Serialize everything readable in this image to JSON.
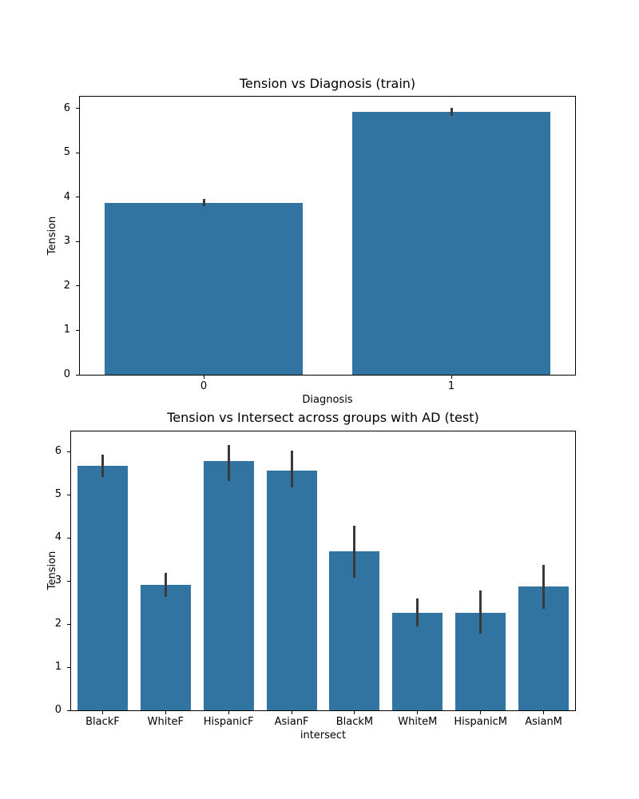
{
  "figure": {
    "background": "#ffffff",
    "bar_color": "#3274a1",
    "errorbar_color": "#3a3a3a",
    "spine_color": "#000000",
    "text_color": "#000000"
  },
  "chart_data": [
    {
      "type": "bar",
      "title": "Tension vs Diagnosis (train)",
      "xlabel": "Diagnosis",
      "ylabel": "Tension",
      "categories": [
        "0",
        "1"
      ],
      "values": [
        3.88,
        5.92
      ],
      "error_low": [
        3.8,
        5.83
      ],
      "error_high": [
        3.97,
        6.02
      ],
      "yticks": [
        0,
        1,
        2,
        3,
        4,
        5,
        6
      ],
      "ylim": [
        0,
        6.27
      ],
      "bar_width_fraction": 0.8,
      "grid": false,
      "legend": null
    },
    {
      "type": "bar",
      "title": "Tension vs Intersect across groups with AD (test)",
      "xlabel": "intersect",
      "ylabel": "Tension",
      "categories": [
        "BlackF",
        "WhiteF",
        "HispanicF",
        "AsianF",
        "BlackM",
        "WhiteM",
        "HispanicM",
        "AsianM"
      ],
      "values": [
        5.67,
        2.91,
        5.78,
        5.57,
        3.69,
        2.27,
        2.27,
        2.88
      ],
      "error_low": [
        5.41,
        2.64,
        5.32,
        5.18,
        3.07,
        1.94,
        1.78,
        2.36
      ],
      "error_high": [
        5.94,
        3.19,
        6.15,
        6.02,
        4.28,
        2.59,
        2.78,
        3.38
      ],
      "yticks": [
        0,
        1,
        2,
        3,
        4,
        5,
        6
      ],
      "ylim": [
        0,
        6.47
      ],
      "bar_width_fraction": 0.8,
      "grid": false,
      "legend": null
    }
  ]
}
